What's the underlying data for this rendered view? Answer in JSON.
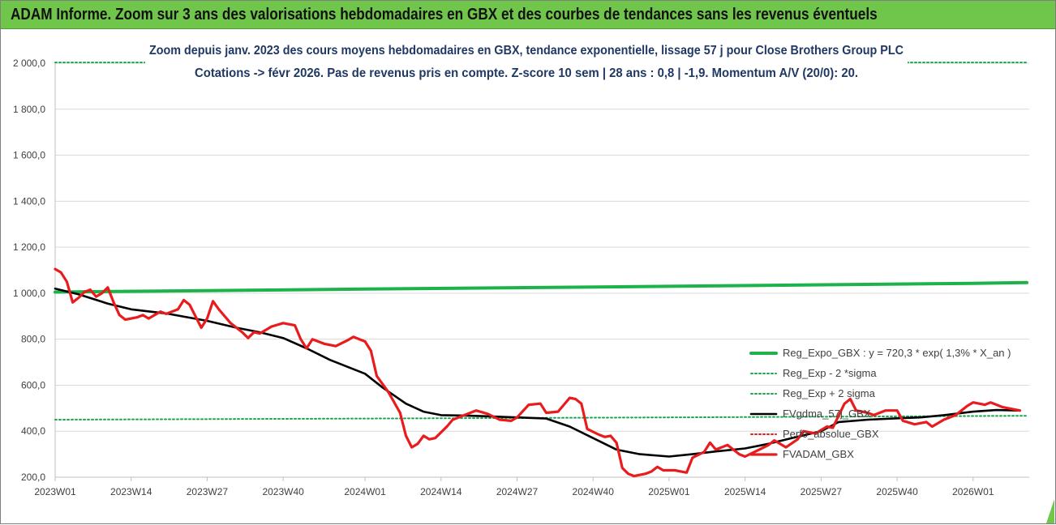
{
  "banner": {
    "title": "ADAM Informe. Zoom sur 3 ans des valorisations hebdomadaires en GBX et des courbes de tendances sans les revenus éventuels"
  },
  "colors": {
    "banner": "#70c64a",
    "reg_expo": "#1db34a",
    "sigma": "#1aa84e",
    "fvgdma": "#000000",
    "perfo": "#e02020",
    "fvadam": "#e81c1c",
    "grid": "#d9d9d9"
  },
  "chart_data": {
    "type": "line",
    "title": "Zoom depuis janv. 2023 des cours moyens hebdomadaires en GBX, tendance exponentielle, lissage 57 j pour Close Brothers Group PLC",
    "subtitle": "Cotations -> févr 2026. Pas de revenus pris en compte. Z-score 10 sem | 28 ans : 0,8 | -1,9. Momentum A/V (20/0): 20.",
    "ylim": [
      200,
      2000
    ],
    "y_ticks": [
      "200,0",
      "400,0",
      "600,0",
      "800,0",
      "1 000,0",
      "1 200,0",
      "1 400,0",
      "1 600,0",
      "1 800,0",
      "2 000,0"
    ],
    "x_ticks": [
      "2023W01",
      "2023W14",
      "2023W27",
      "2023W40",
      "2024W01",
      "2024W14",
      "2024W27",
      "2024W40",
      "2025W01",
      "2025W14",
      "2025W27",
      "2025W40",
      "2026W01"
    ],
    "grid": "horizontal",
    "legend_position": "right",
    "series": [
      {
        "name": "Reg_Expo_GBX : y = 720,3 * exp( 1,3% *  X_an )",
        "style": "thick-solid",
        "points": [
          [
            "2023W01",
            1005
          ],
          [
            "2024W01",
            1018
          ],
          [
            "2025W01",
            1030
          ],
          [
            "2026W01",
            1043
          ],
          [
            "2026W10",
            1046
          ]
        ]
      },
      {
        "name": "Reg_Exp - 2 *sigma",
        "style": "dotted",
        "points": [
          [
            "2023W01",
            450
          ],
          [
            "2024W01",
            455
          ],
          [
            "2025W01",
            460
          ],
          [
            "2026W01",
            466
          ],
          [
            "2026W10",
            467
          ]
        ]
      },
      {
        "name": "Reg_Exp + 2 sigma",
        "style": "dotted",
        "points": [
          [
            "2023W01",
            2003
          ],
          [
            "2026W10",
            2003
          ]
        ]
      },
      {
        "name": "FVgdma_57j_GBX",
        "style": "solid",
        "points": [
          [
            "2023W01",
            1020
          ],
          [
            "2023W05",
            995
          ],
          [
            "2023W10",
            955
          ],
          [
            "2023W14",
            930
          ],
          [
            "2023W20",
            912
          ],
          [
            "2023W27",
            880
          ],
          [
            "2023W32",
            850
          ],
          [
            "2023W36",
            830
          ],
          [
            "2023W40",
            805
          ],
          [
            "2023W44",
            760
          ],
          [
            "2023W48",
            710
          ],
          [
            "2024W01",
            650
          ],
          [
            "2024W04",
            590
          ],
          [
            "2024W08",
            520
          ],
          [
            "2024W11",
            485
          ],
          [
            "2024W14",
            470
          ],
          [
            "2024W18",
            468
          ],
          [
            "2024W22",
            465
          ],
          [
            "2024W27",
            460
          ],
          [
            "2024W32",
            455
          ],
          [
            "2024W36",
            420
          ],
          [
            "2024W40",
            370
          ],
          [
            "2024W44",
            320
          ],
          [
            "2024W48",
            300
          ],
          [
            "2025W01",
            290
          ],
          [
            "2025W05",
            300
          ],
          [
            "2025W09",
            312
          ],
          [
            "2025W14",
            325
          ],
          [
            "2025W18",
            345
          ],
          [
            "2025W22",
            370
          ],
          [
            "2025W27",
            400
          ],
          [
            "2025W30",
            440
          ],
          [
            "2025W35",
            450
          ],
          [
            "2025W40",
            456
          ],
          [
            "2025W44",
            460
          ],
          [
            "2025W48",
            470
          ],
          [
            "2026W01",
            485
          ],
          [
            "2026W05",
            492
          ],
          [
            "2026W09",
            490
          ]
        ]
      },
      {
        "name": "Perfo_absolue_GBX",
        "style": "dotted-red",
        "points": []
      },
      {
        "name": "FVADAM_GBX",
        "style": "thick-red",
        "points": [
          [
            "2023W01",
            1105
          ],
          [
            "2023W02",
            1090
          ],
          [
            "2023W03",
            1050
          ],
          [
            "2023W04",
            960
          ],
          [
            "2023W05",
            980
          ],
          [
            "2023W06",
            1005
          ],
          [
            "2023W07",
            1015
          ],
          [
            "2023W08",
            985
          ],
          [
            "2023W09",
            1000
          ],
          [
            "2023W10",
            1025
          ],
          [
            "2023W11",
            960
          ],
          [
            "2023W12",
            905
          ],
          [
            "2023W13",
            885
          ],
          [
            "2023W15",
            895
          ],
          [
            "2023W16",
            905
          ],
          [
            "2023W17",
            890
          ],
          [
            "2023W19",
            920
          ],
          [
            "2023W20",
            910
          ],
          [
            "2023W22",
            930
          ],
          [
            "2023W23",
            970
          ],
          [
            "2023W24",
            950
          ],
          [
            "2023W26",
            850
          ],
          [
            "2023W27",
            890
          ],
          [
            "2023W28",
            965
          ],
          [
            "2023W29",
            930
          ],
          [
            "2023W31",
            870
          ],
          [
            "2023W33",
            830
          ],
          [
            "2023W34",
            805
          ],
          [
            "2023W35",
            830
          ],
          [
            "2023W36",
            825
          ],
          [
            "2023W38",
            855
          ],
          [
            "2023W40",
            870
          ],
          [
            "2023W42",
            860
          ],
          [
            "2023W43",
            800
          ],
          [
            "2023W44",
            760
          ],
          [
            "2023W45",
            800
          ],
          [
            "2023W47",
            780
          ],
          [
            "2023W49",
            770
          ],
          [
            "2023W51",
            795
          ],
          [
            "2023W52",
            810
          ],
          [
            "2024W01",
            790
          ],
          [
            "2024W02",
            750
          ],
          [
            "2024W03",
            640
          ],
          [
            "2024W05",
            570
          ],
          [
            "2024W07",
            480
          ],
          [
            "2024W08",
            380
          ],
          [
            "2024W09",
            330
          ],
          [
            "2024W10",
            345
          ],
          [
            "2024W11",
            380
          ],
          [
            "2024W12",
            365
          ],
          [
            "2024W13",
            370
          ],
          [
            "2024W15",
            420
          ],
          [
            "2024W16",
            450
          ],
          [
            "2024W18",
            470
          ],
          [
            "2024W20",
            490
          ],
          [
            "2024W22",
            475
          ],
          [
            "2024W24",
            450
          ],
          [
            "2024W26",
            445
          ],
          [
            "2024W27",
            460
          ],
          [
            "2024W29",
            515
          ],
          [
            "2024W31",
            520
          ],
          [
            "2024W32",
            480
          ],
          [
            "2024W34",
            485
          ],
          [
            "2024W36",
            545
          ],
          [
            "2024W37",
            540
          ],
          [
            "2024W38",
            520
          ],
          [
            "2024W39",
            410
          ],
          [
            "2024W41",
            385
          ],
          [
            "2024W42",
            375
          ],
          [
            "2024W43",
            380
          ],
          [
            "2024W44",
            350
          ],
          [
            "2024W45",
            240
          ],
          [
            "2024W46",
            215
          ],
          [
            "2024W47",
            205
          ],
          [
            "2024W49",
            215
          ],
          [
            "2024W50",
            225
          ],
          [
            "2024W51",
            245
          ],
          [
            "2024W52",
            230
          ],
          [
            "2025W02",
            230
          ],
          [
            "2025W03",
            225
          ],
          [
            "2025W04",
            220
          ],
          [
            "2025W05",
            285
          ],
          [
            "2025W07",
            310
          ],
          [
            "2025W08",
            350
          ],
          [
            "2025W09",
            320
          ],
          [
            "2025W11",
            340
          ],
          [
            "2025W13",
            300
          ],
          [
            "2025W14",
            290
          ],
          [
            "2025W16",
            315
          ],
          [
            "2025W18",
            340
          ],
          [
            "2025W19",
            360
          ],
          [
            "2025W21",
            330
          ],
          [
            "2025W23",
            365
          ],
          [
            "2025W24",
            400
          ],
          [
            "2025W26",
            390
          ],
          [
            "2025W28",
            420
          ],
          [
            "2025W29",
            415
          ],
          [
            "2025W31",
            520
          ],
          [
            "2025W32",
            540
          ],
          [
            "2025W33",
            490
          ],
          [
            "2025W35",
            480
          ],
          [
            "2025W36",
            470
          ],
          [
            "2025W38",
            490
          ],
          [
            "2025W40",
            490
          ],
          [
            "2025W41",
            445
          ],
          [
            "2025W43",
            430
          ],
          [
            "2025W45",
            440
          ],
          [
            "2025W46",
            420
          ],
          [
            "2025W48",
            450
          ],
          [
            "2025W50",
            470
          ],
          [
            "2025W52",
            510
          ],
          [
            "2026W01",
            525
          ],
          [
            "2026W03",
            515
          ],
          [
            "2026W04",
            525
          ],
          [
            "2026W06",
            505
          ],
          [
            "2026W08",
            495
          ],
          [
            "2026W09",
            490
          ]
        ]
      }
    ]
  }
}
